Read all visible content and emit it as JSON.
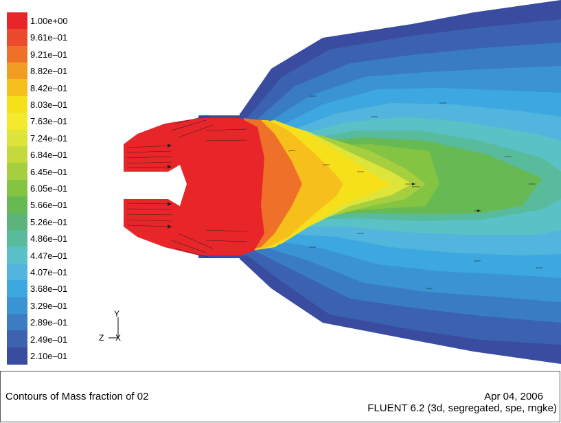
{
  "plot": {
    "colorbar": {
      "labels": [
        "1.00e+00",
        "9.61e–01",
        "9.21e–01",
        "8.82e–01",
        "8.42e–01",
        "8.03e–01",
        "7.63e–01",
        "7.24e–01",
        "6.84e–01",
        "6.45e–01",
        "6.05e–01",
        "5.66e–01",
        "5.26e–01",
        "4.86e–01",
        "4.47e–01",
        "4.07e–01",
        "3.68e–01",
        "3.29e–01",
        "2.89e–01",
        "2.49e–01",
        "2.10e–01"
      ],
      "colors": [
        "#e8262a",
        "#ea4b2a",
        "#ef7028",
        "#f39c24",
        "#f7bf1c",
        "#f6e01a",
        "#f2ea2a",
        "#dde43a",
        "#c3d93c",
        "#a6cf3f",
        "#84c443",
        "#67b954",
        "#5cb47a",
        "#58bb9c",
        "#5ac2c7",
        "#52b5de",
        "#3da7e0",
        "#3a93d3",
        "#3b7cc3",
        "#3c62b0",
        "#3a4c9f"
      ]
    },
    "triad": {
      "y": "Y",
      "z": "Z",
      "x": "X"
    }
  },
  "caption": {
    "title": "Contours of Mass fraction of 02",
    "date": "Apr 04, 2006",
    "software": "FLUENT 6.2 (3d, segregated, spe, rngke)"
  }
}
